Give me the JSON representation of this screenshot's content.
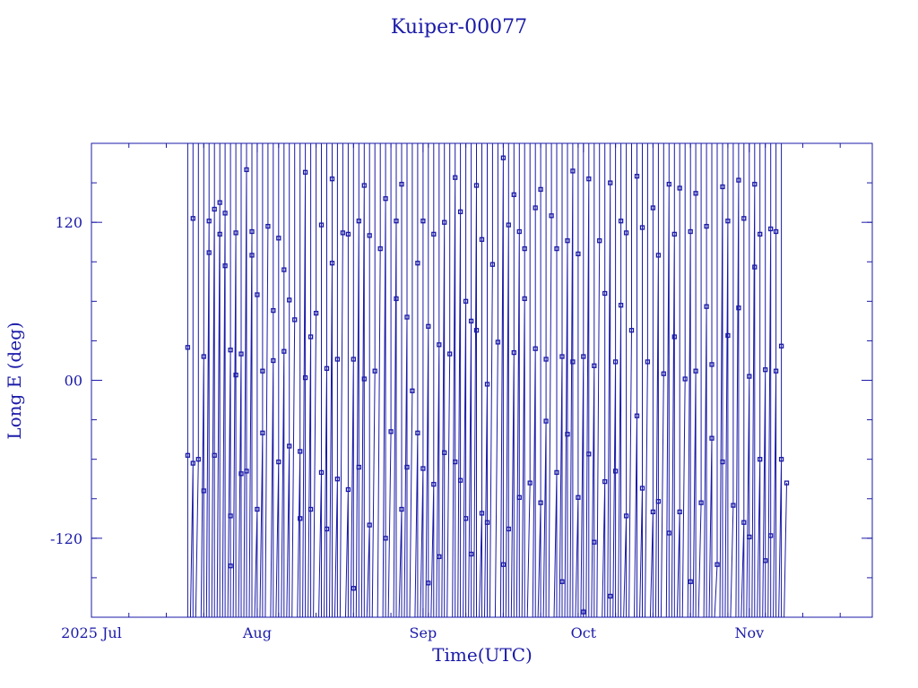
{
  "chart_data": {
    "type": "line",
    "title": "Kuiper-00077",
    "xlabel": "Time(UTC)",
    "ylabel": "Long E (deg)",
    "x_axis": {
      "type": "date",
      "range": [
        "2025-07-01",
        "2025-11-24"
      ],
      "tick_labels": [
        {
          "date": "2025-07-01",
          "label": "2025 Jul"
        },
        {
          "date": "2025-08-01",
          "label": "Aug"
        },
        {
          "date": "2025-09-01",
          "label": "Sep"
        },
        {
          "date": "2025-10-01",
          "label": "Oct"
        },
        {
          "date": "2025-11-01",
          "label": "Nov"
        }
      ]
    },
    "y_axis": {
      "range": [
        -180,
        180
      ],
      "tick_labels": [
        {
          "value": 120,
          "label": "120"
        },
        {
          "value": 0,
          "label": "00"
        },
        {
          "value": -120,
          "label": "-120"
        }
      ]
    },
    "marker": "square",
    "color": "#1a1aa8",
    "series": [
      {
        "points": [
          [
            "2025-07-19",
            -57
          ],
          [
            "2025-07-19",
            25
          ],
          [
            "2025-07-20",
            -63
          ],
          [
            "2025-07-20",
            123
          ],
          [
            "2025-07-21",
            -60
          ],
          [
            "2025-07-22",
            18
          ],
          [
            "2025-07-22",
            -84
          ],
          [
            "2025-07-23",
            121
          ],
          [
            "2025-07-23",
            97
          ],
          [
            "2025-07-24",
            130
          ],
          [
            "2025-07-24",
            -57
          ],
          [
            "2025-07-25",
            135
          ],
          [
            "2025-07-25",
            111
          ],
          [
            "2025-07-26",
            127
          ],
          [
            "2025-07-26",
            87
          ],
          [
            "2025-07-27",
            23
          ],
          [
            "2025-07-27",
            -103
          ],
          [
            "2025-07-27",
            -141
          ],
          [
            "2025-07-28",
            112
          ],
          [
            "2025-07-28",
            4
          ],
          [
            "2025-07-29",
            20
          ],
          [
            "2025-07-29",
            -71
          ],
          [
            "2025-07-30",
            160
          ],
          [
            "2025-07-30",
            -69
          ],
          [
            "2025-07-31",
            113
          ],
          [
            "2025-07-31",
            95
          ],
          [
            "2025-08-01",
            -98
          ],
          [
            "2025-08-01",
            65
          ],
          [
            "2025-08-02",
            -40
          ],
          [
            "2025-08-02",
            7
          ],
          [
            "2025-08-03",
            117
          ],
          [
            "2025-08-04",
            15
          ],
          [
            "2025-08-04",
            53
          ],
          [
            "2025-08-05",
            -62
          ],
          [
            "2025-08-05",
            108
          ],
          [
            "2025-08-06",
            22
          ],
          [
            "2025-08-06",
            84
          ],
          [
            "2025-08-07",
            -50
          ],
          [
            "2025-08-07",
            61
          ],
          [
            "2025-08-08",
            46
          ],
          [
            "2025-08-09",
            -54
          ],
          [
            "2025-08-09",
            -105
          ],
          [
            "2025-08-10",
            158
          ],
          [
            "2025-08-10",
            2
          ],
          [
            "2025-08-11",
            33
          ],
          [
            "2025-08-11",
            -98
          ],
          [
            "2025-08-12",
            51
          ],
          [
            "2025-08-13",
            -70
          ],
          [
            "2025-08-13",
            118
          ],
          [
            "2025-08-14",
            9
          ],
          [
            "2025-08-14",
            -113
          ],
          [
            "2025-08-15",
            89
          ],
          [
            "2025-08-15",
            153
          ],
          [
            "2025-08-16",
            -75
          ],
          [
            "2025-08-16",
            16
          ],
          [
            "2025-08-17",
            112
          ],
          [
            "2025-08-18",
            -83
          ],
          [
            "2025-08-18",
            111
          ],
          [
            "2025-08-19",
            16
          ],
          [
            "2025-08-19",
            -158
          ],
          [
            "2025-08-20",
            121
          ],
          [
            "2025-08-20",
            -66
          ],
          [
            "2025-08-21",
            148
          ],
          [
            "2025-08-21",
            1
          ],
          [
            "2025-08-22",
            -110
          ],
          [
            "2025-08-22",
            110
          ],
          [
            "2025-08-23",
            7
          ],
          [
            "2025-08-24",
            100
          ],
          [
            "2025-08-25",
            138
          ],
          [
            "2025-08-25",
            -120
          ],
          [
            "2025-08-26",
            -39
          ],
          [
            "2025-08-27",
            121
          ],
          [
            "2025-08-27",
            62
          ],
          [
            "2025-08-28",
            -98
          ],
          [
            "2025-08-28",
            149
          ],
          [
            "2025-08-29",
            48
          ],
          [
            "2025-08-29",
            -66
          ],
          [
            "2025-08-30",
            -8
          ],
          [
            "2025-08-31",
            -40
          ],
          [
            "2025-08-31",
            89
          ],
          [
            "2025-09-01",
            -67
          ],
          [
            "2025-09-01",
            121
          ],
          [
            "2025-09-02",
            41
          ],
          [
            "2025-09-02",
            -154
          ],
          [
            "2025-09-03",
            -79
          ],
          [
            "2025-09-03",
            111
          ],
          [
            "2025-09-04",
            27
          ],
          [
            "2025-09-04",
            -134
          ],
          [
            "2025-09-05",
            120
          ],
          [
            "2025-09-05",
            -55
          ],
          [
            "2025-09-06",
            20
          ],
          [
            "2025-09-07",
            154
          ],
          [
            "2025-09-07",
            -62
          ],
          [
            "2025-09-08",
            128
          ],
          [
            "2025-09-08",
            -76
          ],
          [
            "2025-09-09",
            60
          ],
          [
            "2025-09-09",
            -105
          ],
          [
            "2025-09-10",
            45
          ],
          [
            "2025-09-10",
            -132
          ],
          [
            "2025-09-11",
            148
          ],
          [
            "2025-09-11",
            38
          ],
          [
            "2025-09-12",
            -101
          ],
          [
            "2025-09-12",
            107
          ],
          [
            "2025-09-13",
            -3
          ],
          [
            "2025-09-13",
            -108
          ],
          [
            "2025-09-14",
            88
          ],
          [
            "2025-09-15",
            29
          ],
          [
            "2025-09-16",
            169
          ],
          [
            "2025-09-16",
            -140
          ],
          [
            "2025-09-17",
            118
          ],
          [
            "2025-09-17",
            -113
          ],
          [
            "2025-09-18",
            21
          ],
          [
            "2025-09-18",
            141
          ],
          [
            "2025-09-19",
            113
          ],
          [
            "2025-09-19",
            -89
          ],
          [
            "2025-09-20",
            62
          ],
          [
            "2025-09-20",
            100
          ],
          [
            "2025-09-21",
            -78
          ],
          [
            "2025-09-22",
            24
          ],
          [
            "2025-09-22",
            131
          ],
          [
            "2025-09-23",
            -93
          ],
          [
            "2025-09-23",
            145
          ],
          [
            "2025-09-24",
            -31
          ],
          [
            "2025-09-24",
            16
          ],
          [
            "2025-09-25",
            125
          ],
          [
            "2025-09-26",
            -70
          ],
          [
            "2025-09-26",
            100
          ],
          [
            "2025-09-27",
            18
          ],
          [
            "2025-09-27",
            -153
          ],
          [
            "2025-09-28",
            106
          ],
          [
            "2025-09-28",
            -41
          ],
          [
            "2025-09-29",
            159
          ],
          [
            "2025-09-29",
            14
          ],
          [
            "2025-09-30",
            -89
          ],
          [
            "2025-09-30",
            96
          ],
          [
            "2025-10-01",
            18
          ],
          [
            "2025-10-01",
            -176
          ],
          [
            "2025-10-02",
            153
          ],
          [
            "2025-10-02",
            -56
          ],
          [
            "2025-10-03",
            11
          ],
          [
            "2025-10-03",
            -123
          ],
          [
            "2025-10-04",
            106
          ],
          [
            "2025-10-05",
            -77
          ],
          [
            "2025-10-05",
            66
          ],
          [
            "2025-10-06",
            150
          ],
          [
            "2025-10-06",
            -164
          ],
          [
            "2025-10-07",
            14
          ],
          [
            "2025-10-07",
            -69
          ],
          [
            "2025-10-08",
            57
          ],
          [
            "2025-10-08",
            121
          ],
          [
            "2025-10-09",
            -103
          ],
          [
            "2025-10-09",
            112
          ],
          [
            "2025-10-10",
            38
          ],
          [
            "2025-10-11",
            -27
          ],
          [
            "2025-10-11",
            155
          ],
          [
            "2025-10-12",
            -82
          ],
          [
            "2025-10-12",
            116
          ],
          [
            "2025-10-13",
            14
          ],
          [
            "2025-10-14",
            -100
          ],
          [
            "2025-10-14",
            131
          ],
          [
            "2025-10-15",
            95
          ],
          [
            "2025-10-15",
            -92
          ],
          [
            "2025-10-16",
            5
          ],
          [
            "2025-10-17",
            149
          ],
          [
            "2025-10-17",
            -116
          ],
          [
            "2025-10-18",
            111
          ],
          [
            "2025-10-18",
            33
          ],
          [
            "2025-10-19",
            -100
          ],
          [
            "2025-10-19",
            146
          ],
          [
            "2025-10-20",
            1
          ],
          [
            "2025-10-21",
            113
          ],
          [
            "2025-10-21",
            -153
          ],
          [
            "2025-10-22",
            7
          ],
          [
            "2025-10-22",
            142
          ],
          [
            "2025-10-23",
            -93
          ],
          [
            "2025-10-24",
            56
          ],
          [
            "2025-10-24",
            117
          ],
          [
            "2025-10-25",
            -44
          ],
          [
            "2025-10-25",
            12
          ],
          [
            "2025-10-26",
            -140
          ],
          [
            "2025-10-27",
            147
          ],
          [
            "2025-10-27",
            -62
          ],
          [
            "2025-10-28",
            121
          ],
          [
            "2025-10-28",
            34
          ],
          [
            "2025-10-29",
            -95
          ],
          [
            "2025-10-30",
            152
          ],
          [
            "2025-10-30",
            55
          ],
          [
            "2025-10-31",
            -108
          ],
          [
            "2025-10-31",
            123
          ],
          [
            "2025-11-01",
            3
          ],
          [
            "2025-11-01",
            -119
          ],
          [
            "2025-11-02",
            149
          ],
          [
            "2025-11-02",
            86
          ],
          [
            "2025-11-03",
            -60
          ],
          [
            "2025-11-03",
            111
          ],
          [
            "2025-11-04",
            8
          ],
          [
            "2025-11-04",
            -137
          ],
          [
            "2025-11-05",
            115
          ],
          [
            "2025-11-05",
            -118
          ],
          [
            "2025-11-06",
            7
          ],
          [
            "2025-11-06",
            113
          ],
          [
            "2025-11-07",
            -60
          ],
          [
            "2025-11-07",
            26
          ],
          [
            "2025-11-08",
            -78
          ]
        ]
      }
    ],
    "grid": false
  }
}
